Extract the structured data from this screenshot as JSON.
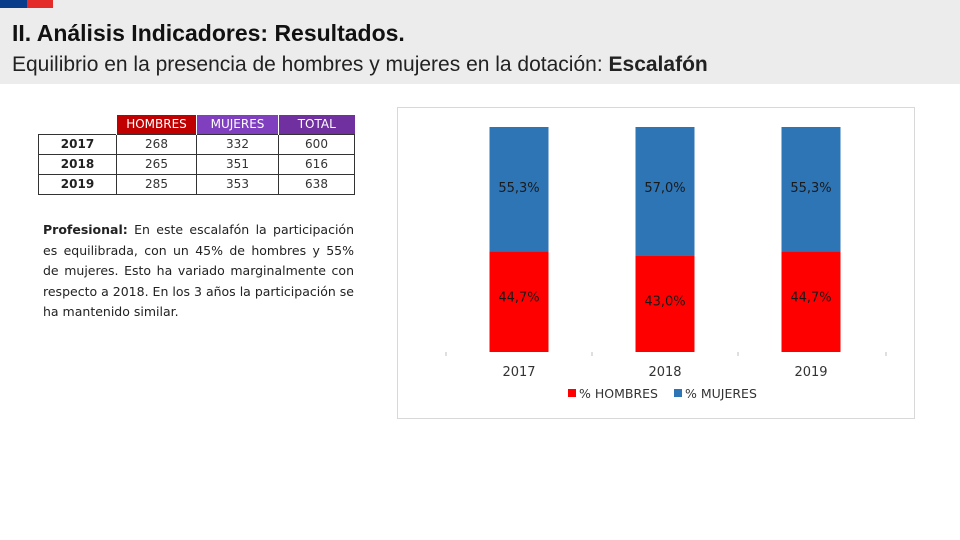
{
  "header": {
    "title": "II. Análisis Indicadores: Resultados.",
    "subtitle_prefix": "Equilibrio en la presencia de hombres y mujeres en la dotación: ",
    "subtitle_bold": "Escalafón"
  },
  "table": {
    "headers": [
      "HOMBRES",
      "MUJERES",
      "TOTAL"
    ],
    "rows": [
      {
        "year": "2017",
        "hombres": "268",
        "mujeres": "332",
        "total": "600"
      },
      {
        "year": "2018",
        "hombres": "265",
        "mujeres": "351",
        "total": "616"
      },
      {
        "year": "2019",
        "hombres": "285",
        "mujeres": "353",
        "total": "638"
      }
    ]
  },
  "paragraph": {
    "label": "Profesional:",
    "text": " En este escalafón la participación es equilibrada, con un 45% de hombres y 55% de mujeres. Esto ha variado marginalmente con respecto a 2018. En los 3 años la participación se ha mantenido similar."
  },
  "colors": {
    "hombres": "#ff0000",
    "mujeres": "#2e75b6"
  },
  "chart_data": {
    "type": "bar",
    "stacked": true,
    "percent": true,
    "categories": [
      "2017",
      "2018",
      "2019"
    ],
    "series": [
      {
        "name": "% HOMBRES",
        "values": [
          44.7,
          43.0,
          44.7
        ],
        "labels": [
          "44,7%",
          "43,0%",
          "44,7%"
        ]
      },
      {
        "name": "% MUJERES",
        "values": [
          55.3,
          57.0,
          55.3
        ],
        "labels": [
          "55,3%",
          "57,0%",
          "55,3%"
        ]
      }
    ],
    "ylim": [
      0,
      100
    ],
    "legend_position": "bottom"
  }
}
